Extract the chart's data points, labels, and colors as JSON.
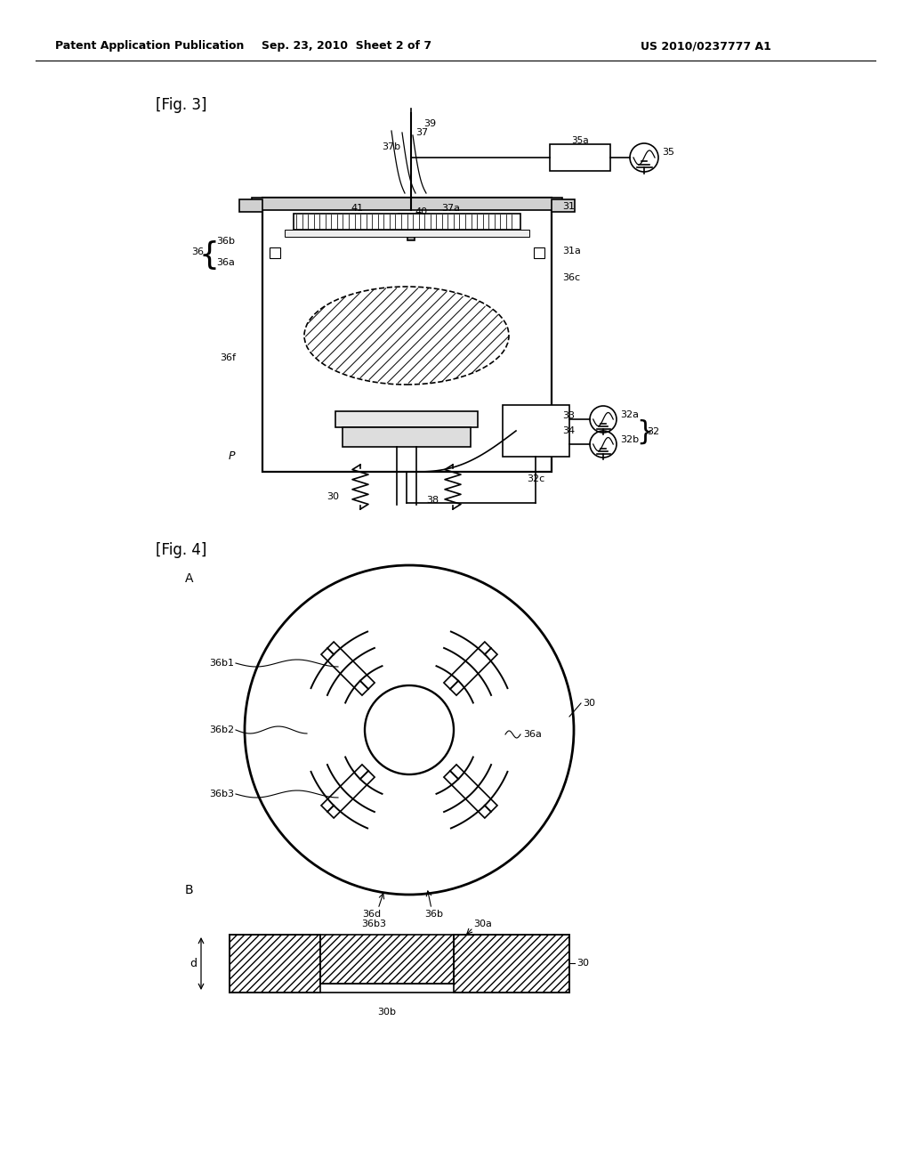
{
  "bg_color": "#ffffff",
  "line_color": "#000000",
  "header_left": "Patent Application Publication",
  "header_mid": "Sep. 23, 2010  Sheet 2 of 7",
  "header_right": "US 2010/0237777 A1",
  "fig3_label": "[Fig. 3]",
  "fig4_label": "[Fig. 4]",
  "label_A": "A",
  "label_B": "B",
  "label_d": "d"
}
